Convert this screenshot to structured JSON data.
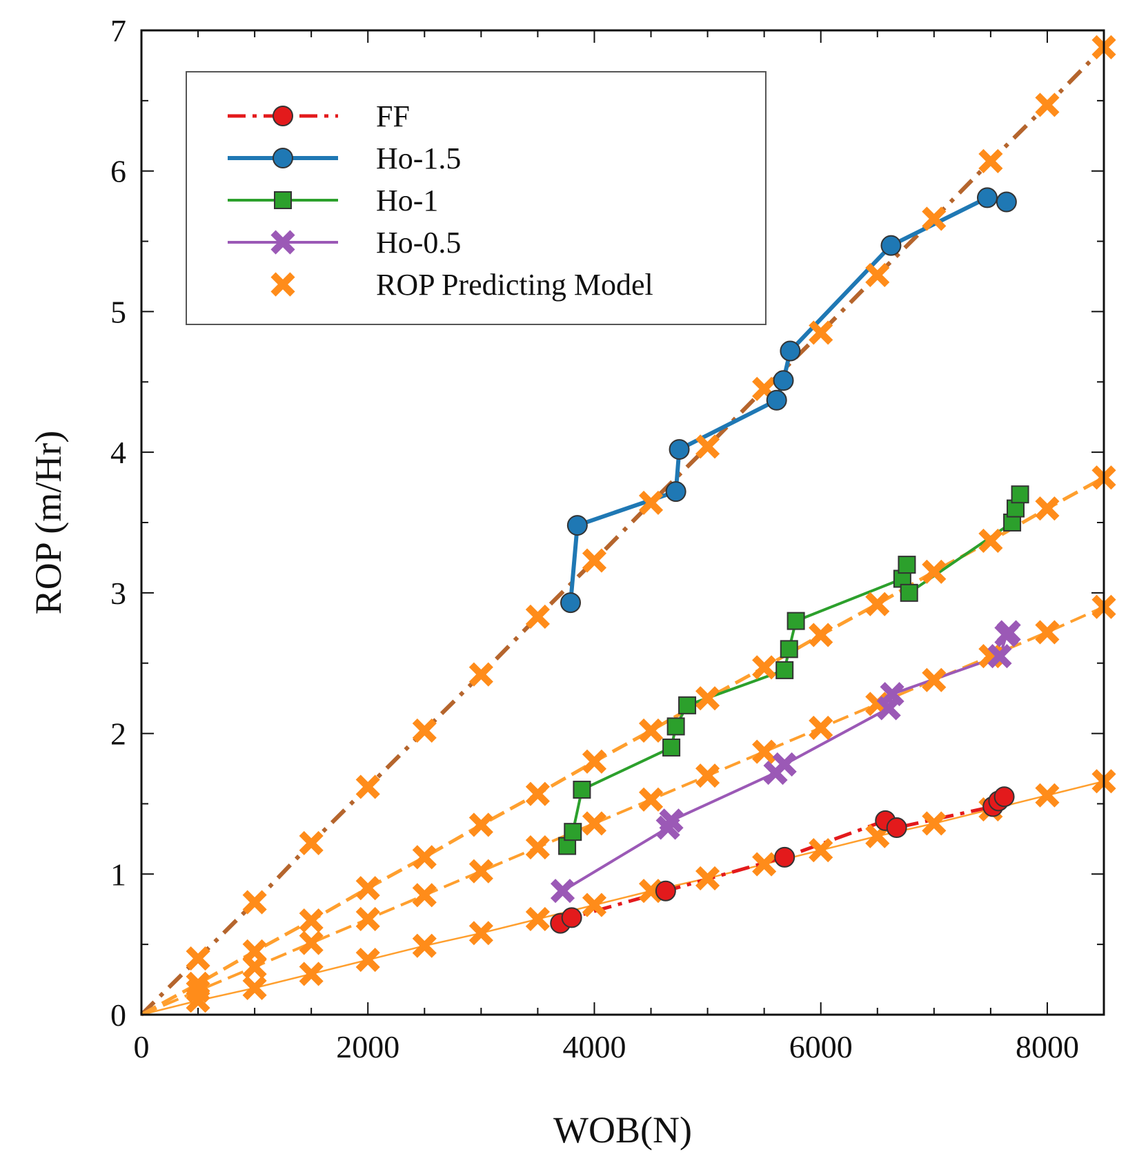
{
  "chart_data": {
    "type": "line",
    "title": "",
    "xlabel": "WOB(N)",
    "ylabel": "ROP (m/Hr)",
    "xlim": [
      0,
      8500
    ],
    "ylim": [
      0,
      7
    ],
    "xticks": [
      "0",
      "2000",
      "4000",
      "6000",
      "8000"
    ],
    "yticks": [
      "0",
      "1",
      "2",
      "3",
      "4",
      "5",
      "6",
      "7"
    ],
    "grid": false,
    "legend_position": "top-left",
    "colors": {
      "FF": "#e31a1c",
      "Ho-1.5": "#1f78b4",
      "Ho-1": "#2ca02c",
      "Ho-0.5": "#9b59b6",
      "model": "#ff8c1a",
      "model_line_steep": "#b5652d",
      "model_line": "#ff9f2e"
    },
    "series": [
      {
        "name": "FF",
        "marker": "circle",
        "line": "dashdot",
        "x": [
          3700,
          3800,
          4630,
          5680,
          6570,
          6670,
          7520,
          7570,
          7620
        ],
        "y": [
          0.65,
          0.69,
          0.88,
          1.12,
          1.38,
          1.33,
          1.48,
          1.52,
          1.55
        ]
      },
      {
        "name": "Ho-1.5",
        "marker": "circle",
        "line": "solid",
        "x": [
          3790,
          3850,
          4720,
          4750,
          5610,
          5670,
          5730,
          6620,
          7470,
          7640
        ],
        "y": [
          2.93,
          3.48,
          3.72,
          4.02,
          4.37,
          4.51,
          4.72,
          5.47,
          5.81,
          5.78
        ]
      },
      {
        "name": "Ho-1",
        "marker": "square",
        "line": "solid",
        "x": [
          3760,
          3810,
          3890,
          4680,
          4720,
          4820,
          5680,
          5720,
          5780,
          6720,
          6760,
          6780,
          7690,
          7720,
          7760
        ],
        "y": [
          1.2,
          1.3,
          1.6,
          1.9,
          2.05,
          2.2,
          2.45,
          2.6,
          2.8,
          3.1,
          3.2,
          3.0,
          3.5,
          3.6,
          3.7
        ]
      },
      {
        "name": "Ho-0.5",
        "marker": "x",
        "line": "solid",
        "x": [
          3720,
          4650,
          4680,
          5600,
          5680,
          6600,
          6630,
          7580,
          7640,
          7660
        ],
        "y": [
          0.88,
          1.33,
          1.38,
          1.72,
          1.78,
          2.18,
          2.28,
          2.55,
          2.7,
          2.72
        ]
      },
      {
        "name": "ROP Predicting Model",
        "marker": "x",
        "line": "none",
        "lines": [
          {
            "x": [
              0,
              500,
              1000,
              1500,
              2000,
              2500,
              3000,
              3500,
              4000,
              4500,
              5000,
              5500,
              6000,
              6500,
              7000,
              7500,
              8000,
              8500
            ],
            "y": [
              0,
              0.4,
              0.8,
              1.22,
              1.62,
              2.02,
              2.42,
              2.83,
              3.23,
              3.64,
              4.04,
              4.45,
              4.85,
              5.26,
              5.66,
              6.07,
              6.47,
              6.88
            ]
          },
          {
            "x": [
              0,
              500,
              1000,
              1500,
              2000,
              2500,
              3000,
              3500,
              4000,
              4500,
              5000,
              5500,
              6000,
              6500,
              7000,
              7500,
              8000,
              8500
            ],
            "y": [
              0,
              0.22,
              0.45,
              0.67,
              0.9,
              1.12,
              1.35,
              1.57,
              1.8,
              2.02,
              2.25,
              2.47,
              2.7,
              2.92,
              3.15,
              3.37,
              3.6,
              3.82
            ]
          },
          {
            "x": [
              0,
              500,
              1000,
              1500,
              2000,
              2500,
              3000,
              3500,
              4000,
              4500,
              5000,
              5500,
              6000,
              6500,
              7000,
              7500,
              8000,
              8500
            ],
            "y": [
              0,
              0.17,
              0.34,
              0.51,
              0.68,
              0.85,
              1.02,
              1.19,
              1.36,
              1.53,
              1.7,
              1.87,
              2.04,
              2.21,
              2.38,
              2.55,
              2.72,
              2.9
            ]
          },
          {
            "x": [
              0,
              500,
              1000,
              1500,
              2000,
              2500,
              3000,
              3500,
              4000,
              4500,
              5000,
              5500,
              6000,
              6500,
              7000,
              7500,
              8000,
              8500
            ],
            "y": [
              0,
              0.1,
              0.19,
              0.29,
              0.39,
              0.49,
              0.58,
              0.68,
              0.78,
              0.88,
              0.97,
              1.07,
              1.17,
              1.27,
              1.36,
              1.46,
              1.56,
              1.66
            ]
          }
        ]
      }
    ],
    "legend": [
      {
        "label": "FF"
      },
      {
        "label": "Ho-1.5"
      },
      {
        "label": "Ho-1"
      },
      {
        "label": "Ho-0.5"
      },
      {
        "label": "ROP Predicting Model"
      }
    ]
  }
}
